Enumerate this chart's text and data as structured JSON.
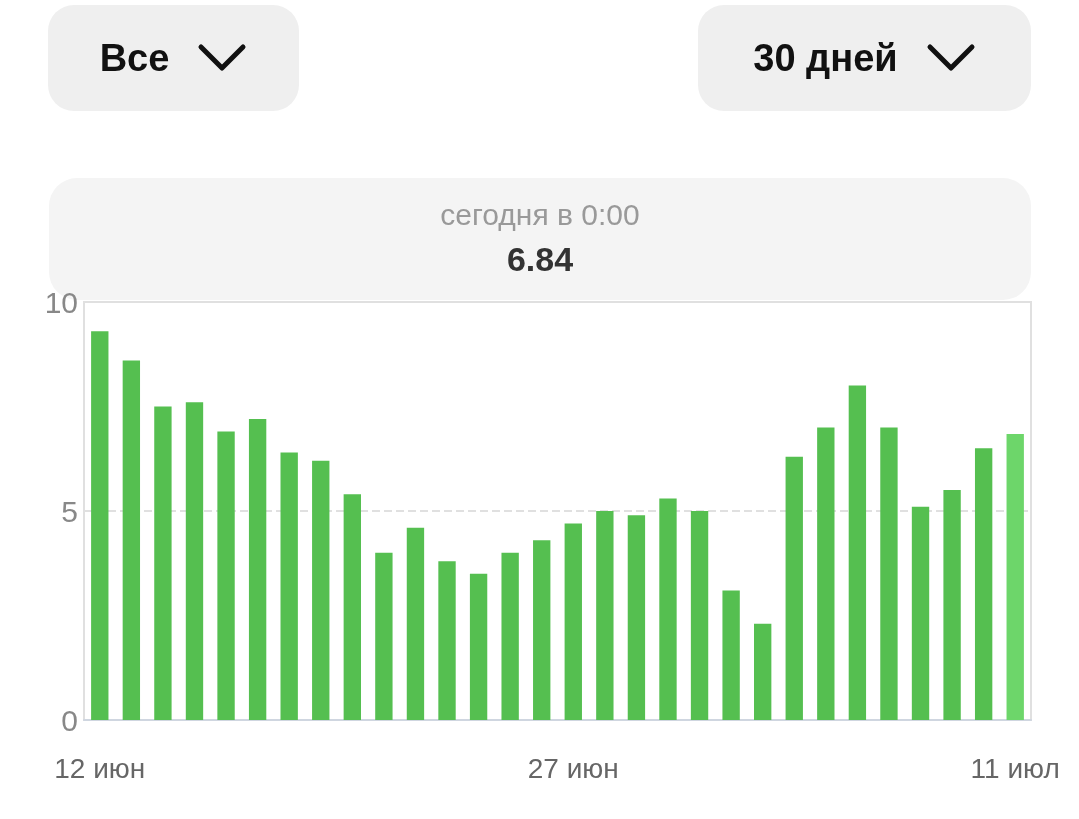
{
  "chart_data": {
    "type": "bar",
    "categories": [
      "12 июн",
      null,
      null,
      null,
      null,
      null,
      null,
      null,
      null,
      null,
      null,
      null,
      null,
      null,
      null,
      "27 июн",
      null,
      null,
      null,
      null,
      null,
      null,
      null,
      null,
      null,
      null,
      null,
      null,
      null,
      "11 июл"
    ],
    "values": [
      9.3,
      8.6,
      7.5,
      7.6,
      6.9,
      7.2,
      6.4,
      6.2,
      5.4,
      4.0,
      4.6,
      3.8,
      3.5,
      4.0,
      4.3,
      4.7,
      5.0,
      4.9,
      5.3,
      5.0,
      3.1,
      2.3,
      6.3,
      7.0,
      8.0,
      7.0,
      5.1,
      5.5,
      6.5,
      6.84
    ],
    "colors": [
      "#55bf50",
      "#55bf50",
      "#55bf50",
      "#55bf50",
      "#55bf50",
      "#55bf50",
      "#55bf50",
      "#55bf50",
      "#55bf50",
      "#55bf50",
      "#55bf50",
      "#55bf50",
      "#55bf50",
      "#55bf50",
      "#55bf50",
      "#55bf50",
      "#55bf50",
      "#55bf50",
      "#55bf50",
      "#55bf50",
      "#55bf50",
      "#55bf50",
      "#55bf50",
      "#55bf50",
      "#55bf50",
      "#55bf50",
      "#55bf50",
      "#55bf50",
      "#55bf50",
      "#6dd66a"
    ],
    "ylim": [
      0,
      10
    ],
    "yticks": [
      0,
      5,
      10
    ],
    "grid": true,
    "annotations": [
      "Все",
      "30 дней",
      "сегодня в 0:00",
      "6.84"
    ]
  }
}
